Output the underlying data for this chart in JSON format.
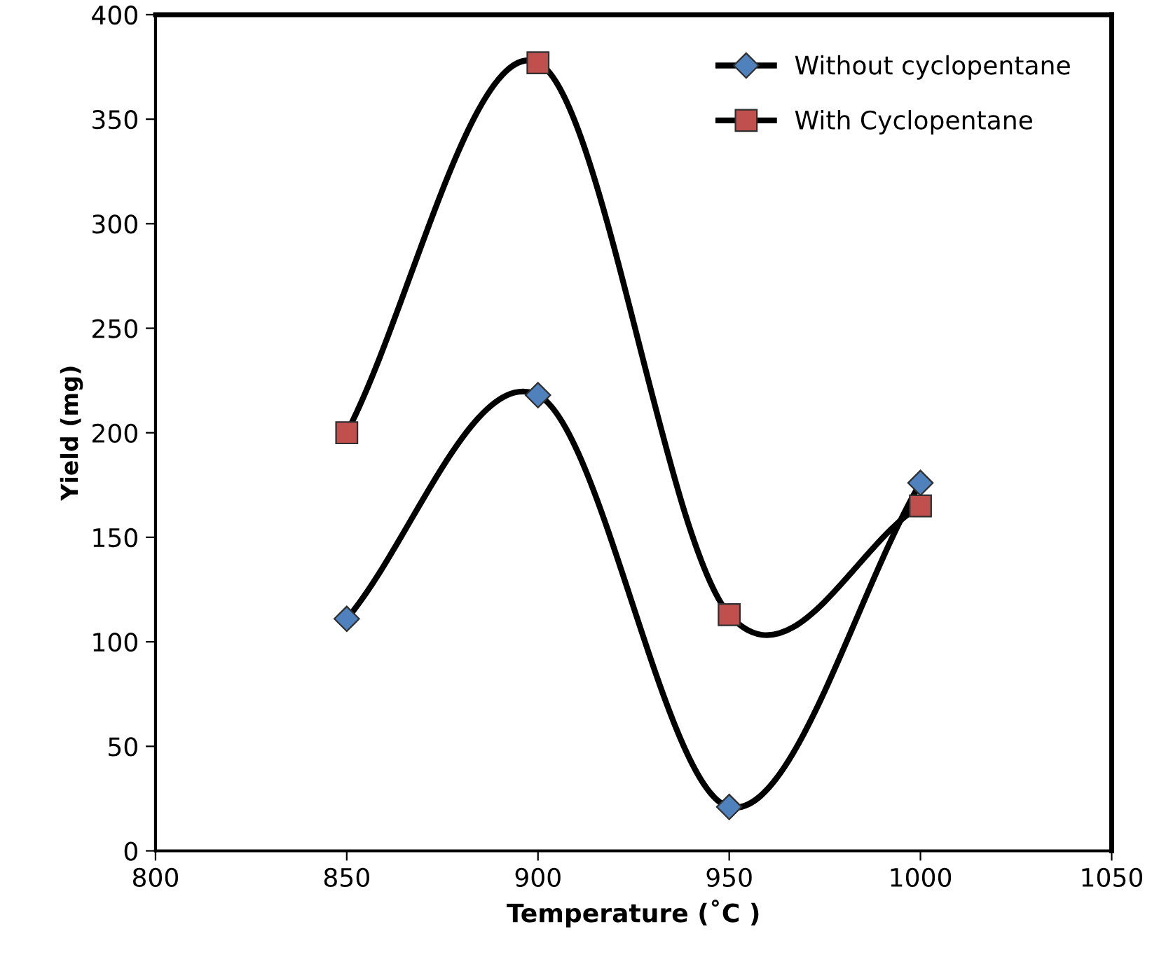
{
  "chart_data": {
    "type": "line",
    "xlabel": "Temperature (˚C )",
    "ylabel": "Yield (mg)",
    "x": [
      850,
      900,
      950,
      1000
    ],
    "series": [
      {
        "name": "Without cyclopentane",
        "color": "#4f81bd",
        "marker": "diamond",
        "values": [
          111,
          218,
          21,
          176
        ]
      },
      {
        "name": "With Cyclopentane",
        "color": "#c0504d",
        "marker": "square",
        "values": [
          200,
          377,
          113,
          165
        ]
      }
    ],
    "xlim": [
      800,
      1050
    ],
    "xticks": [
      800,
      850,
      900,
      950,
      1000,
      1050
    ],
    "ylim": [
      0,
      400
    ],
    "yticks": [
      0,
      50,
      100,
      150,
      200,
      250,
      300,
      350,
      400
    ],
    "grid": false,
    "legend": "top right",
    "line_style": "solid"
  }
}
